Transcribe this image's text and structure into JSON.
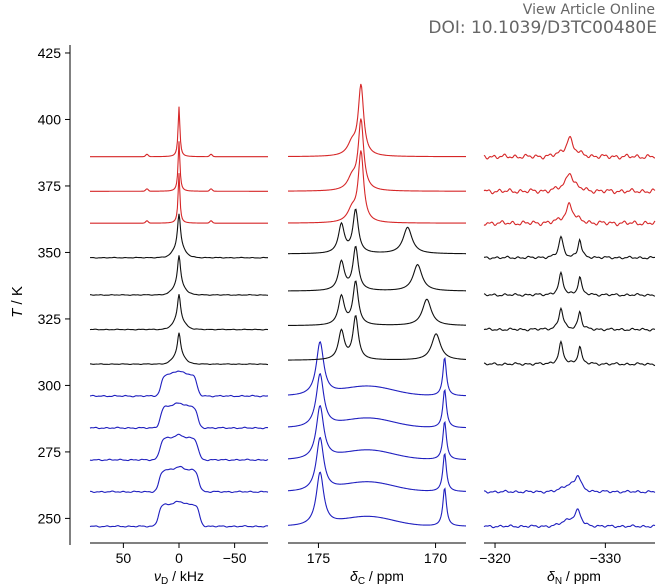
{
  "header": {
    "view_article": "View Article Online",
    "doi": "DOI: 10.1039/D3TC00480E"
  },
  "colors": {
    "high_temperature": "#d62728",
    "mid_temperature": "#111111",
    "low_temperature": "#1f1fbf"
  },
  "chart_data": {
    "type": "line",
    "ylabel_symbol": "T",
    "ylabel_unit": " / K",
    "ylim": [
      240,
      428
    ],
    "y_ticks": [
      250,
      275,
      300,
      325,
      350,
      375,
      400,
      425
    ],
    "temperatures": [
      247,
      260,
      272,
      284,
      296,
      308,
      321,
      334,
      348,
      361,
      373,
      386
    ],
    "color_groups": {
      "high_temperature": [
        361,
        373,
        386
      ],
      "mid_temperature": [
        308,
        321,
        334,
        348
      ],
      "low_temperature": [
        247,
        260,
        272,
        284,
        296
      ]
    },
    "panels": [
      {
        "id": "deuterium",
        "xlabel_symbol": "ν",
        "xlabel_sub": "D",
        "xlabel_unit": " / kHz",
        "xlim": [
          80,
          -80
        ],
        "x_ticks": [
          50,
          0,
          -50
        ],
        "x_tick_labels": [
          "50",
          "0",
          "−50"
        ]
      },
      {
        "id": "carbon",
        "xlabel_symbol": "δ",
        "xlabel_sub": "C",
        "xlabel_unit": " / ppm",
        "xlim": [
          176.3,
          168.7
        ],
        "x_ticks": [
          175,
          170
        ],
        "x_tick_labels": [
          "175",
          "170"
        ]
      },
      {
        "id": "nitrogen",
        "xlabel_symbol": "δ",
        "xlabel_sub": "N",
        "xlabel_unit": " / ppm",
        "xlim": [
          -319,
          -334.5
        ],
        "x_ticks": [
          -320,
          -330
        ],
        "x_tick_labels": [
          "−320",
          "−330"
        ],
        "missing_temperatures": [
          272,
          284,
          296
        ]
      }
    ]
  }
}
